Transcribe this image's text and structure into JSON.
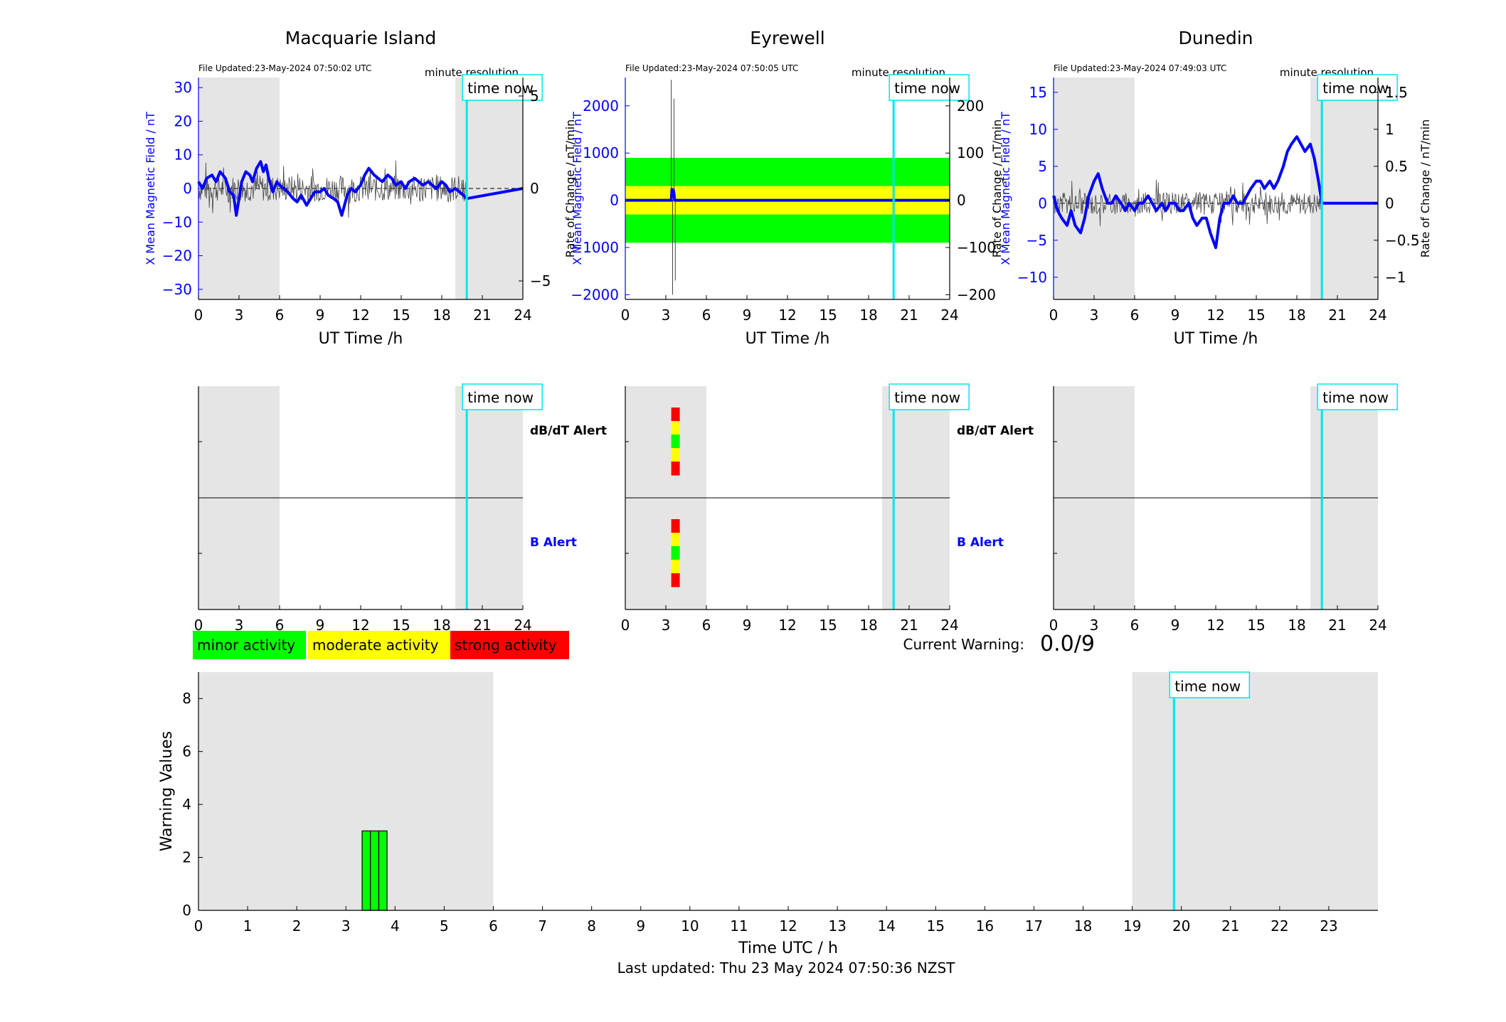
{
  "colors": {
    "shade": "#e5e5e5",
    "field_line": "#0000ff",
    "rate_line": "#444444",
    "time_now": "#00e5ee",
    "minor": "#00ff00",
    "moderate": "#ffff00",
    "strong": "#ff0000",
    "axis_blue": "#0000ff"
  },
  "labels": {
    "time_now": "time now",
    "minute_resolution": "minute resolution",
    "xlabel_top": "UT Time /h",
    "ylabel_field": "X Mean Magnetic Field / nT",
    "ylabel_rate": "Rate of Change / nT/min",
    "dbdt_alert": "dB/dT Alert",
    "b_alert": "B Alert",
    "current_warning_label": "Current Warning:",
    "current_warning_value": "0.0/9",
    "legend_minor": "minor activity",
    "legend_moderate": "moderate activity",
    "legend_strong": "strong activity",
    "bottom_ylabel": "Warning Values",
    "bottom_xlabel": "Time UTC / h",
    "last_updated": "Last updated: Thu 23 May 2024 07:50:36 NZST"
  },
  "chart_data": [
    {
      "type": "line",
      "title": "Macquarie Island",
      "file_updated": "File Updated:23-May-2024 07:50:02 UTC",
      "xlim": [
        0,
        24
      ],
      "xticks": [
        0,
        3,
        6,
        9,
        12,
        15,
        18,
        21,
        24
      ],
      "ylim_left": [
        -33,
        33
      ],
      "yticks_left": [
        -30,
        -20,
        -10,
        0,
        10,
        20,
        30
      ],
      "ylim_right": [
        -6,
        6
      ],
      "yticks_right": [
        -5,
        0,
        5
      ],
      "shaded_intervals": [
        [
          0,
          6
        ],
        [
          19.0,
          24
        ]
      ],
      "time_now": 19.85,
      "series": [
        {
          "axis": "left",
          "x": [
            0,
            0.3,
            0.6,
            1.0,
            1.3,
            1.6,
            2.0,
            2.3,
            2.6,
            2.8,
            3.0,
            3.2,
            3.5,
            3.8,
            4.0,
            4.3,
            4.6,
            4.8,
            5.0,
            5.2,
            5.5,
            5.8,
            6.0,
            6.3,
            6.6,
            7.0,
            7.3,
            7.6,
            8.0,
            8.3,
            8.6,
            9.0,
            9.3,
            9.6,
            10.0,
            10.3,
            10.6,
            11.0,
            11.3,
            11.6,
            12.0,
            12.3,
            12.6,
            13.0,
            13.3,
            13.6,
            14.0,
            14.3,
            14.6,
            15.0,
            15.3,
            15.6,
            16.0,
            16.3,
            16.6,
            17.0,
            17.3,
            17.6,
            18.0,
            18.3,
            18.6,
            19.0,
            19.3,
            19.6,
            19.85,
            24
          ],
          "y": [
            2,
            0,
            3,
            4,
            2,
            5,
            3,
            -1,
            -2,
            -8,
            -3,
            2,
            5,
            4,
            2,
            6,
            8,
            5,
            7,
            3,
            -1,
            2,
            1,
            0,
            -1,
            -3,
            -4,
            -2,
            -5,
            -3,
            -1,
            -1,
            0,
            -2,
            -3,
            -4,
            -8,
            -2,
            0,
            -1,
            1,
            4,
            6,
            4,
            3,
            2,
            4,
            3,
            1,
            2,
            0,
            2,
            3,
            2,
            1,
            2,
            1,
            0,
            2,
            1,
            -1,
            0,
            -1,
            -2,
            -3,
            0
          ]
        }
      ]
    },
    {
      "type": "line",
      "title": "Eyrewell",
      "file_updated": "File Updated:23-May-2024 07:50:05 UTC",
      "xlim": [
        0,
        24
      ],
      "xticks": [
        0,
        3,
        6,
        9,
        12,
        15,
        18,
        21,
        24
      ],
      "ylim_left": [
        -2100,
        2600
      ],
      "yticks_left": [
        -2000,
        -1000,
        0,
        1000,
        2000
      ],
      "ylim_right": [
        -210,
        260
      ],
      "yticks_right": [
        -200,
        -100,
        0,
        100,
        200
      ],
      "shaded_intervals": [
        [
          0,
          6
        ],
        [
          19.0,
          24
        ]
      ],
      "shaded_y": [
        -700,
        700
      ],
      "time_now": 19.85,
      "band_y": [
        -90,
        90
      ],
      "band_colors": [
        "#00ff00",
        "#ffff00",
        "#00ff00"
      ],
      "series": [
        {
          "axis": "left",
          "x": [
            0,
            3.4,
            3.45,
            3.5,
            3.55,
            3.6,
            3.65,
            19.85,
            24
          ],
          "y": [
            0,
            0,
            230,
            200,
            220,
            150,
            0,
            0,
            0
          ]
        }
      ],
      "spikes_right": [
        [
          3.4,
          255
        ],
        [
          3.5,
          -200
        ],
        [
          3.6,
          215
        ],
        [
          3.7,
          -170
        ]
      ]
    },
    {
      "type": "line",
      "title": "Dunedin",
      "file_updated": "File Updated:23-May-2024 07:49:03 UTC",
      "xlim": [
        0,
        24
      ],
      "xticks": [
        0,
        3,
        6,
        9,
        12,
        15,
        18,
        21,
        24
      ],
      "ylim_left": [
        -13,
        17
      ],
      "yticks_left": [
        -10,
        -5,
        0,
        5,
        10,
        15
      ],
      "ylim_right": [
        -1.3,
        1.7
      ],
      "yticks_right": [
        -1,
        -0.5,
        0,
        0.5,
        1,
        1.5
      ],
      "shaded_intervals": [
        [
          0,
          6
        ],
        [
          19.0,
          24
        ]
      ],
      "time_now": 19.85,
      "series": [
        {
          "axis": "left",
          "x": [
            0,
            0.3,
            0.6,
            1.0,
            1.3,
            1.6,
            2.0,
            2.3,
            2.6,
            3.0,
            3.3,
            3.6,
            4.0,
            4.3,
            4.6,
            5.0,
            5.3,
            5.6,
            6.0,
            6.3,
            6.6,
            7.0,
            7.3,
            7.6,
            8.0,
            8.3,
            8.6,
            9.0,
            9.3,
            9.6,
            10.0,
            10.3,
            10.6,
            11.0,
            11.3,
            11.6,
            12.0,
            12.3,
            12.6,
            13.0,
            13.3,
            13.6,
            14.0,
            14.3,
            14.6,
            15.0,
            15.3,
            15.6,
            16.0,
            16.3,
            16.6,
            17.0,
            17.3,
            17.6,
            18.0,
            18.3,
            18.6,
            19.0,
            19.3,
            19.6,
            19.85,
            24
          ],
          "y": [
            1,
            -1,
            -2,
            -3,
            -1,
            -3,
            -4,
            -2,
            1,
            3,
            4,
            2,
            0,
            0,
            1,
            0,
            -1,
            0,
            -1,
            0,
            0,
            1,
            0,
            -1,
            0,
            -1,
            0,
            0,
            -1,
            -1,
            0,
            -2,
            -3,
            -2,
            -2,
            -4,
            -6,
            -2,
            0,
            0,
            1,
            0,
            0,
            1,
            2,
            3,
            3,
            2,
            3,
            2,
            3,
            5,
            7,
            8,
            9,
            8,
            7,
            8,
            6,
            3,
            0,
            0
          ]
        }
      ]
    },
    {
      "type": "heatmap",
      "title": "",
      "xlim": [
        0,
        24
      ],
      "xticks": [
        0,
        3,
        6,
        9,
        12,
        15,
        18,
        21,
        24
      ],
      "rows": [
        "dB/dT Alert",
        "B Alert"
      ],
      "shaded_intervals": [
        [
          0,
          6
        ],
        [
          19.0,
          24
        ]
      ],
      "time_now": 19.85,
      "panels": [
        {
          "station": "Macquarie Island",
          "alerts": []
        },
        {
          "station": "Eyrewell",
          "alerts": [
            {
              "row": "dB/dT Alert",
              "x": 3.4,
              "levels": [
                "strong",
                "moderate",
                "minor",
                "moderate",
                "strong"
              ]
            },
            {
              "row": "B Alert",
              "x": 3.4,
              "levels": [
                "strong",
                "moderate",
                "minor",
                "moderate",
                "strong"
              ]
            }
          ]
        },
        {
          "station": "Dunedin",
          "alerts": []
        }
      ]
    },
    {
      "type": "bar",
      "title": "",
      "xlabel": "Time UTC / h",
      "ylabel": "Warning Values",
      "xlim": [
        0,
        24
      ],
      "xticks": [
        0,
        1,
        2,
        3,
        4,
        5,
        6,
        7,
        8,
        9,
        10,
        11,
        12,
        13,
        14,
        15,
        16,
        17,
        18,
        19,
        20,
        21,
        22,
        23
      ],
      "ylim": [
        0,
        9
      ],
      "yticks": [
        0,
        2,
        4,
        6,
        8
      ],
      "shaded_intervals": [
        [
          0,
          6
        ],
        [
          19,
          24
        ]
      ],
      "time_now": 19.85,
      "bars": [
        {
          "x": 3.33,
          "width": 0.167,
          "value": 3
        },
        {
          "x": 3.5,
          "width": 0.167,
          "value": 3
        },
        {
          "x": 3.67,
          "width": 0.167,
          "value": 3
        }
      ]
    }
  ]
}
